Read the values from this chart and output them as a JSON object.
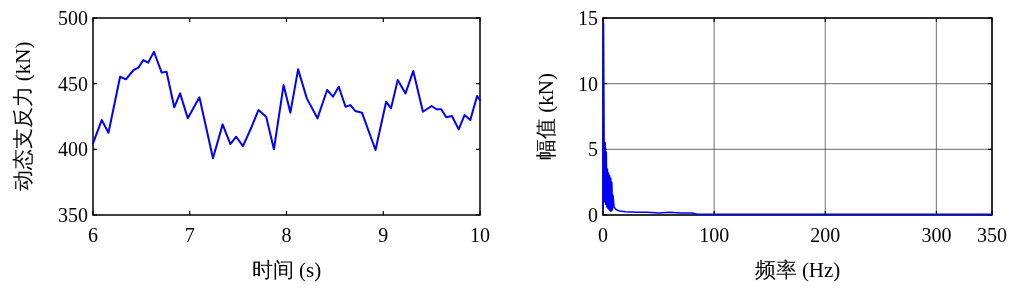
{
  "chart_data": [
    {
      "type": "line",
      "xlabel": "时间 (s)",
      "ylabel": "动态支反力 (kN)",
      "xlim": [
        6,
        10
      ],
      "ylim": [
        350,
        500
      ],
      "xticks": [
        6,
        7,
        8,
        9,
        10
      ],
      "yticks": [
        350,
        400,
        450,
        500
      ],
      "x": [
        6.0,
        6.09,
        6.16,
        6.28,
        6.34,
        6.42,
        6.47,
        6.52,
        6.57,
        6.63,
        6.71,
        6.76,
        6.84,
        6.9,
        6.98,
        7.1,
        7.24,
        7.34,
        7.42,
        7.48,
        7.55,
        7.64,
        7.71,
        7.79,
        7.87,
        7.97,
        8.04,
        8.12,
        8.21,
        8.32,
        8.42,
        8.48,
        8.54,
        8.61,
        8.66,
        8.71,
        8.78,
        8.92,
        9.03,
        9.08,
        9.15,
        9.23,
        9.31,
        9.41,
        9.5,
        9.55,
        9.6,
        9.65,
        9.71,
        9.78,
        9.84,
        9.9,
        9.97,
        10.0
      ],
      "series": [
        {
          "color": "#0000ff",
          "values": [
            404.6,
            422.3,
            412.6,
            455.3,
            453.3,
            460.4,
            462.2,
            468,
            466,
            474.3,
            458.4,
            459.1,
            432,
            442.6,
            423.6,
            439.6,
            393.2,
            419,
            404,
            409.6,
            402.5,
            417.2,
            429.9,
            424.8,
            400,
            449,
            427.9,
            460.9,
            438.8,
            423.6,
            445.2,
            440.1,
            447.7,
            432.4,
            433.7,
            429.2,
            427.9,
            399.5,
            436.3,
            431.2,
            452.8,
            442.6,
            459.6,
            428.6,
            433,
            430.5,
            430.5,
            424.4,
            425.4,
            415.2,
            426.1,
            422.3,
            440.6,
            437.5
          ]
        }
      ]
    },
    {
      "type": "line",
      "xlabel": "频率 (Hz)",
      "ylabel": "幅值 (kN)",
      "xlim": [
        0,
        350
      ],
      "ylim": [
        0,
        15
      ],
      "xticks": [
        0,
        100,
        200,
        300,
        350
      ],
      "yticks": [
        0,
        5,
        10,
        15
      ],
      "grid": true,
      "x": [
        0,
        0.5,
        1,
        1.5,
        2,
        2.5,
        3,
        3.5,
        4,
        4.5,
        5,
        5.5,
        6,
        6.5,
        7,
        7.5,
        8,
        8.5,
        9,
        10,
        12,
        15,
        20,
        30,
        40,
        50,
        60,
        70,
        80,
        85,
        90,
        120,
        150,
        200,
        250,
        300,
        350
      ],
      "series": [
        {
          "color": "#0000ff",
          "values": [
            0.5,
            14.6,
            6.0,
            1.0,
            5.5,
            0.8,
            4.8,
            0.6,
            3.5,
            0.5,
            3.2,
            0.4,
            3.0,
            0.3,
            2.8,
            0.3,
            2.5,
            0.4,
            1.5,
            0.6,
            0.4,
            0.3,
            0.25,
            0.2,
            0.2,
            0.15,
            0.2,
            0.15,
            0.15,
            0.05,
            0.05,
            0.05,
            0.05,
            0.05,
            0.05,
            0.05,
            0.05
          ]
        }
      ]
    }
  ]
}
